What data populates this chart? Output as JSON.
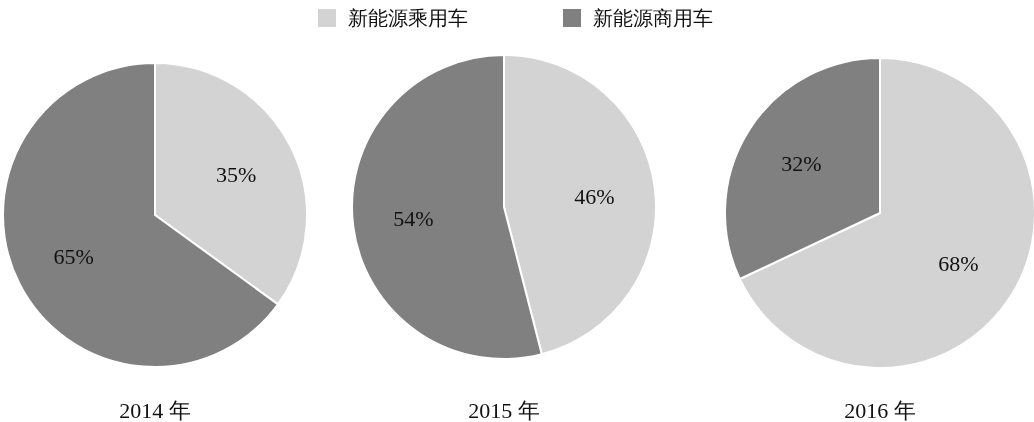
{
  "chart_data": [
    {
      "type": "pie",
      "title": "2014 年",
      "categories": [
        "新能源乘用车",
        "新能源商用车"
      ],
      "values": [
        35,
        65
      ],
      "colors": [
        "#d3d3d3",
        "#808080"
      ],
      "value_labels": [
        "35%",
        "65%"
      ],
      "legend": "top"
    },
    {
      "type": "pie",
      "title": "2015 年",
      "categories": [
        null,
        null
      ],
      "values": [
        46,
        54
      ],
      "colors": [
        "#d3d3d3",
        "#808080"
      ],
      "value_labels": [
        "46%",
        "54%"
      ]
    },
    {
      "type": "pie",
      "title": "2016 年",
      "categories": [
        null,
        null
      ],
      "values": [
        68,
        32
      ],
      "colors": [
        "#d3d3d3",
        "#808080"
      ],
      "value_labels": [
        "68%",
        "32%"
      ]
    }
  ]
}
